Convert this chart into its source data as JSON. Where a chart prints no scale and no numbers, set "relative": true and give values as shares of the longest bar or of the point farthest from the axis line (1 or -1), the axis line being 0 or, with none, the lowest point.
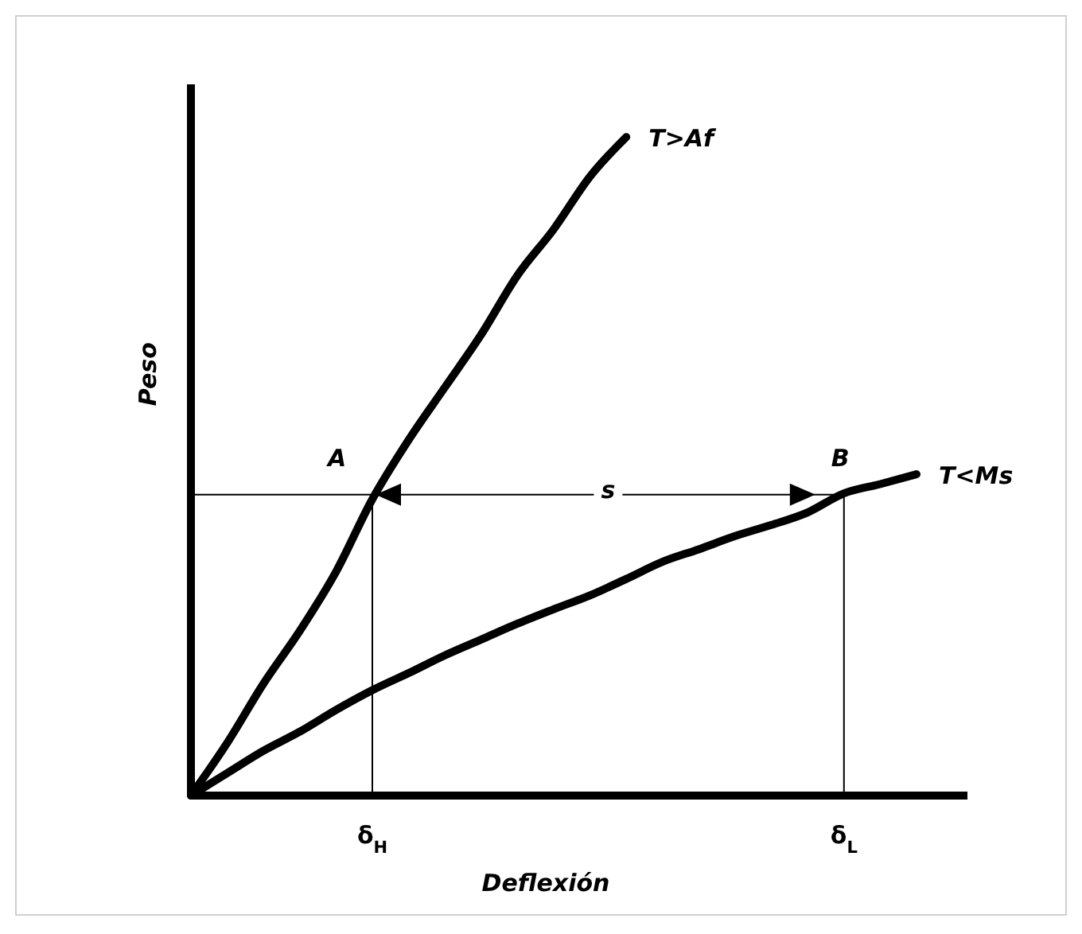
{
  "chart_data": {
    "type": "line",
    "relative": true,
    "xlabel": "Deflexión",
    "ylabel": "Peso",
    "tick_labels": "x",
    "categories": [
      null,
      null,
      null,
      null,
      null,
      "δ$_{H}$",
      null,
      null,
      null,
      null,
      null,
      null,
      null,
      null,
      null,
      null,
      null,
      null,
      "δ$_{L}$",
      null,
      null
    ],
    "series": [
      {
        "name": "T>Af",
        "color": "#000000",
        "values": [
          0,
          0.08,
          0.17,
          0.25,
          0.34,
          0.45,
          0.54,
          0.62,
          0.7,
          0.79,
          0.86,
          0.94,
          1,
          null,
          null,
          null,
          null,
          null,
          null,
          null,
          null
        ]
      },
      {
        "name": "T<Ms",
        "color": "#000000",
        "values": [
          0,
          0.034,
          0.068,
          0.097,
          0.13,
          0.16,
          0.186,
          0.213,
          0.237,
          0.261,
          0.283,
          0.304,
          0.329,
          0.355,
          0.374,
          0.394,
          0.411,
          0.43,
          0.459,
          0.473,
          0.488
        ]
      }
    ],
    "ref_lines": [
      {
        "axis": "y",
        "value": 0.457
      },
      {
        "axis": "x",
        "value": "δ$_{H}$"
      },
      {
        "axis": "x",
        "value": "δ$_{L}$"
      }
    ],
    "annotations": [
      {
        "text": "A",
        "x": "δ$_{H}$",
        "y": 0.457
      },
      {
        "text": "B",
        "x": "δ$_{L}$",
        "y": 0.457
      },
      {
        "text": "s",
        "y": 0.457
      }
    ],
    "line_style": "solid",
    "marker": "none",
    "legend": false
  }
}
